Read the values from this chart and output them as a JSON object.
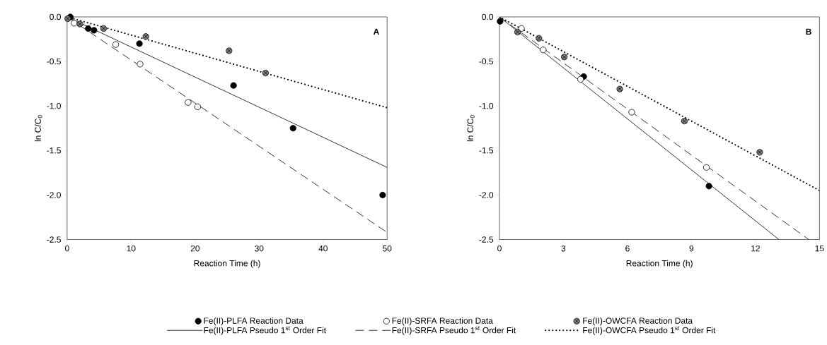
{
  "chart_data": [
    {
      "type": "scatter",
      "xlabel": "Reaction Time (h)",
      "ylabel": "ln C/C$_{0}$",
      "xlim": [
        0,
        50
      ],
      "ylim": [
        -2.5,
        0
      ],
      "xticks": [
        0,
        10,
        20,
        30,
        40,
        50
      ],
      "yticks": [
        {
          "value": -2.5,
          "label": "-2.5"
        },
        {
          "value": -2.0,
          "label": "-2.0"
        },
        {
          "value": -1.5,
          "label": "-1.5"
        },
        {
          "value": -1.0,
          "label": "-1.0"
        },
        {
          "value": -0.5,
          "label": "-0.5"
        },
        {
          "value": 0,
          "label": "0.0"
        }
      ],
      "annotations": [
        "A"
      ],
      "legend": "bottom",
      "series": [
        {
          "name": "Fe(II)-PLFA Reaction Data",
          "marker": "circle",
          "color": "#000000",
          "x": [
            0.5,
            3.3,
            4.2,
            11.3,
            26.0,
            35.3,
            49.3
          ],
          "values": [
            0.0,
            -0.13,
            -0.15,
            -0.3,
            -0.77,
            -1.25,
            -2.0
          ]
        },
        {
          "name": "Fe(II)-SRFA Reaction Data",
          "marker": "circle",
          "color": "#ffffff",
          "x": [
            1.1,
            7.6,
            11.4,
            18.9,
            20.4
          ],
          "values": [
            -0.07,
            -0.31,
            -0.53,
            -0.96,
            -1.01
          ]
        },
        {
          "name": "Fe(II)-OWCFA Reaction Data",
          "marker": "cross",
          "color": "#808080",
          "x": [
            0.1,
            2.0,
            5.7,
            12.3,
            25.3,
            31.0
          ],
          "values": [
            -0.02,
            -0.08,
            -0.13,
            -0.22,
            -0.38,
            -0.63
          ]
        },
        {
          "name": "Fe(II)-PLFA Pseudo 1$^{st}$ Order Fit",
          "type": "line",
          "line_style": "solid",
          "color": "#000000",
          "x": [
            0,
            50
          ],
          "values": [
            0,
            -1.69
          ]
        },
        {
          "name": "Fe(II)-SRFA Pseudo 1$^{st}$ Order Fit",
          "type": "line",
          "line_style": "dashed",
          "color": "#000000",
          "x": [
            0,
            50
          ],
          "values": [
            0,
            -2.42
          ]
        },
        {
          "name": "Fe(II)-OWCFA Pseudo 1$^{st}$ Order Fit",
          "type": "line",
          "line_style": "dotted",
          "color": "#000000",
          "x": [
            0,
            50
          ],
          "values": [
            0,
            -1.02
          ]
        }
      ]
    },
    {
      "type": "scatter",
      "xlabel": "Reaction Time (h)",
      "ylabel": "ln C/C$_{0}$",
      "xlim": [
        0,
        15
      ],
      "ylim": [
        -2.5,
        0
      ],
      "xticks": [
        0,
        3,
        6,
        9,
        12,
        15
      ],
      "yticks": [
        {
          "value": -2.5,
          "label": "-2.5"
        },
        {
          "value": -2.0,
          "label": "-2.0"
        },
        {
          "value": -1.5,
          "label": "-1.5"
        },
        {
          "value": -1.0,
          "label": "-1.0"
        },
        {
          "value": -0.5,
          "label": "-0.5"
        },
        {
          "value": 0,
          "label": "0.0"
        }
      ],
      "annotations": [
        "B"
      ],
      "series": [
        {
          "marker": "circle",
          "color": "#000000",
          "x": [
            0.03,
            3.95,
            9.82
          ],
          "values": [
            -0.05,
            -0.67,
            -1.9
          ]
        },
        {
          "marker": "circle",
          "color": "#ffffff",
          "x": [
            1.03,
            2.05,
            3.8,
            6.2,
            9.7
          ],
          "values": [
            -0.13,
            -0.37,
            -0.7,
            -1.07,
            -1.69
          ]
        },
        {
          "marker": "cross",
          "color": "#808080",
          "x": [
            0.85,
            1.85,
            3.04,
            5.64,
            8.67,
            12.2
          ],
          "values": [
            -0.17,
            -0.24,
            -0.45,
            -0.81,
            -1.17,
            -1.52
          ]
        },
        {
          "type": "line",
          "line_style": "solid",
          "color": "#000000",
          "x": [
            0,
            13.1
          ],
          "values": [
            0,
            -2.5
          ]
        },
        {
          "type": "line",
          "line_style": "dashed",
          "color": "#000000",
          "x": [
            0,
            14.5
          ],
          "values": [
            0,
            -2.5
          ]
        },
        {
          "type": "line",
          "line_style": "dotted",
          "color": "#000000",
          "x": [
            0,
            15
          ],
          "values": [
            0,
            -1.95
          ]
        }
      ]
    }
  ]
}
